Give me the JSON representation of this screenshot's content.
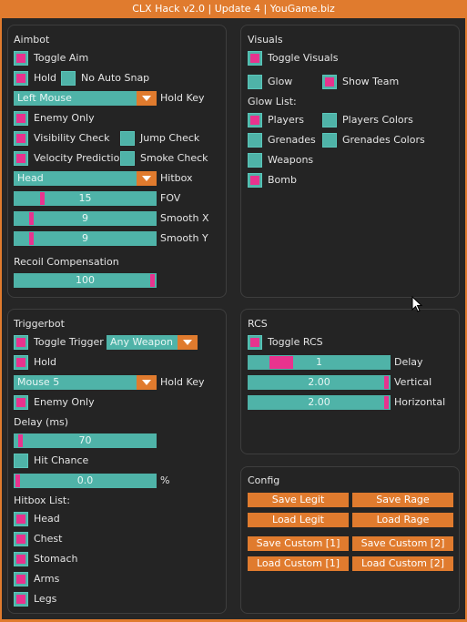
{
  "window": {
    "title": "CLX Hack v2.0 | Update 4 | YouGame.biz"
  },
  "colors": {
    "accent": "#e07b2e",
    "teal": "#4fb3a8",
    "pink": "#e8338e",
    "panel_bg": "#242424"
  },
  "aimbot": {
    "title": "Aimbot",
    "toggle_aim": {
      "label": "Toggle Aim",
      "checked": true
    },
    "hold": {
      "label": "Hold",
      "checked": true
    },
    "no_auto_snap": {
      "label": "No Auto Snap",
      "checked": false
    },
    "hold_key": {
      "value": "Left Mouse",
      "label": "Hold Key"
    },
    "enemy_only": {
      "label": "Enemy Only",
      "checked": true
    },
    "visibility_check": {
      "label": "Visibility Check",
      "checked": true
    },
    "jump_check": {
      "label": "Jump Check",
      "checked": false
    },
    "velocity_prediction": {
      "label": "Velocity Prediction",
      "checked": true
    },
    "smoke_check": {
      "label": "Smoke Check",
      "checked": false
    },
    "hitbox": {
      "value": "Head",
      "label": "Hitbox"
    },
    "fov": {
      "value": "15",
      "label": "FOV",
      "fraction": 0.18
    },
    "smooth_x": {
      "value": "9",
      "label": "Smooth X",
      "fraction": 0.1
    },
    "smooth_y": {
      "value": "9",
      "label": "Smooth Y",
      "fraction": 0.1
    },
    "recoil_title": "Recoil Compensation",
    "recoil": {
      "value": "100",
      "fraction": 1.0
    }
  },
  "visuals": {
    "title": "Visuals",
    "toggle_visuals": {
      "label": "Toggle Visuals",
      "checked": true
    },
    "glow": {
      "label": "Glow",
      "checked": false
    },
    "show_team": {
      "label": "Show Team",
      "checked": true
    },
    "glow_list_title": "Glow List:",
    "players": {
      "label": "Players",
      "checked": true
    },
    "players_colors": {
      "label": "Players Colors",
      "checked": false
    },
    "grenades": {
      "label": "Grenades",
      "checked": false
    },
    "grenades_colors": {
      "label": "Grenades Colors",
      "checked": false
    },
    "weapons": {
      "label": "Weapons",
      "checked": false
    },
    "bomb": {
      "label": "Bomb",
      "checked": true
    }
  },
  "triggerbot": {
    "title": "Triggerbot",
    "toggle_trigger": {
      "label": "Toggle Trigger",
      "checked": true
    },
    "weapon_select": {
      "value": "Any Weapon"
    },
    "hold": {
      "label": "Hold",
      "checked": true
    },
    "hold_key": {
      "value": "Mouse 5",
      "label": "Hold Key"
    },
    "enemy_only": {
      "label": "Enemy Only",
      "checked": true
    },
    "delay_title": "Delay (ms)",
    "delay": {
      "value": "70",
      "fraction": 0.02
    },
    "hit_chance": {
      "label": "Hit Chance",
      "checked": false
    },
    "hit_chance_slider": {
      "value": "0.0",
      "unit": "%",
      "fraction": 0.0
    },
    "hitbox_list_title": "Hitbox List:",
    "head": {
      "label": "Head",
      "checked": true
    },
    "chest": {
      "label": "Chest",
      "checked": true
    },
    "stomach": {
      "label": "Stomach",
      "checked": true
    },
    "arms": {
      "label": "Arms",
      "checked": true
    },
    "legs": {
      "label": "Legs",
      "checked": true
    }
  },
  "rcs": {
    "title": "RCS",
    "toggle_rcs": {
      "label": "Toggle RCS",
      "checked": true
    },
    "delay": {
      "value": "1",
      "label": "Delay",
      "fraction": 0.17
    },
    "vertical": {
      "value": "2.00",
      "label": "Vertical",
      "fraction": 1.0
    },
    "horizontal": {
      "value": "2.00",
      "label": "Horizontal",
      "fraction": 1.0
    }
  },
  "config": {
    "title": "Config",
    "save_legit": "Save Legit",
    "save_rage": "Save Rage",
    "load_legit": "Load Legit",
    "load_rage": "Load Rage",
    "save_custom_1": "Save Custom [1]",
    "save_custom_2": "Save Custom [2]",
    "load_custom_1": "Load Custom [1]",
    "load_custom_2": "Load Custom [2]"
  }
}
